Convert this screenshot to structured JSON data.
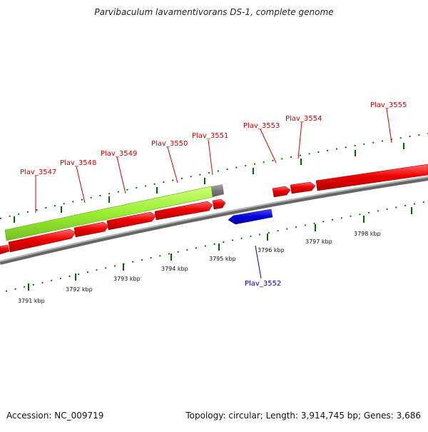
{
  "title": "Parvibaculum lavamentivorans DS-1, complete genome",
  "footer": {
    "accession": "Accession: NC_009719",
    "summary": "Topology: circular; Length: 3,914,745 bp; Genes: 3,686"
  },
  "colors": {
    "gene_forward": "#ee0000",
    "gene_reverse": "#0000dd",
    "highlight": "#99ee33",
    "backbone": "#808080",
    "ticks": "#006600",
    "label_forward": "#cc0000",
    "label_reverse": "#0000cc"
  },
  "scale_labels": [
    "3791 kbp",
    "3792 kbp",
    "3793 kbp",
    "3794 kbp",
    "3795 kbp",
    "3796 kbp",
    "3797 kbp",
    "3798 kbp"
  ],
  "gene_labels": {
    "plav_3547": "Plav_3547",
    "plav_3548": "Plav_3548",
    "plav_3549": "Plav_3549",
    "plav_3550": "Plav_3550",
    "plav_3551": "Plav_3551",
    "plav_3552": "Plav_3552",
    "plav_3553": "Plav_3553",
    "plav_3554": "Plav_3554",
    "plav_3555": "Plav_3555"
  }
}
